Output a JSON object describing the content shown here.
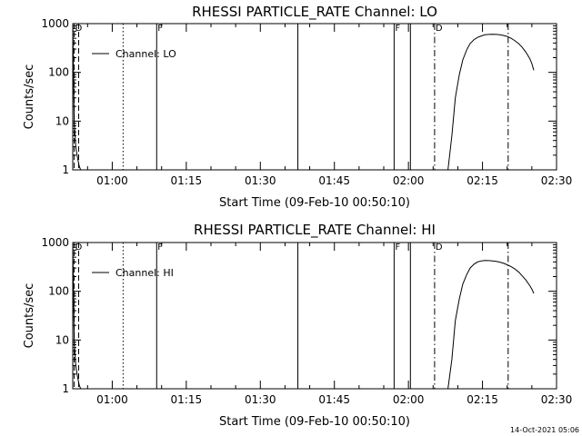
{
  "footer": {
    "timestamp": "14-Oct-2021 05:06"
  },
  "chart_data": [
    {
      "type": "line",
      "title": "RHESSI PARTICLE_RATE Channel: LO",
      "xlabel": "Start Time (09-Feb-10 00:50:10)",
      "ylabel": "Counts/sec",
      "yscale": "log",
      "ylim": [
        1,
        1000
      ],
      "xlim_minutes": [
        52.0,
        150.0
      ],
      "x_ticks": [
        {
          "label": "01:00",
          "minutes": 60
        },
        {
          "label": "01:15",
          "minutes": 75
        },
        {
          "label": "01:30",
          "minutes": 90
        },
        {
          "label": "01:45",
          "minutes": 105
        },
        {
          "label": "02:00",
          "minutes": 120
        },
        {
          "label": "02:15",
          "minutes": 135
        },
        {
          "label": "02:30",
          "minutes": 150
        }
      ],
      "y_ticks": [
        {
          "label": "1",
          "value": 1
        },
        {
          "label": "10",
          "value": 10
        },
        {
          "label": "100",
          "value": 100
        },
        {
          "label": "1000",
          "value": 1000
        }
      ],
      "legend": {
        "entry": "Channel: LO",
        "position": "top-left"
      },
      "series": [
        {
          "name": "Channel: LO",
          "x": [
            52.0,
            52.3,
            52.6,
            53.0,
            53.3,
            53.6,
            128.0,
            128.8,
            129.5,
            130.3,
            131.0,
            131.8,
            132.5,
            133.3,
            134.0,
            134.8,
            135.5,
            136.3,
            137.0,
            137.8,
            138.5,
            139.3,
            140.0,
            140.8,
            141.5,
            142.3,
            143.0,
            143.8,
            144.6,
            145.0,
            145.4
          ],
          "values": [
            1000,
            10,
            3,
            1.7,
            1.2,
            1.0,
            1.0,
            5,
            30,
            90,
            180,
            290,
            390,
            470,
            520,
            560,
            590,
            600,
            605,
            600,
            590,
            570,
            545,
            500,
            450,
            390,
            330,
            260,
            190,
            150,
            110
          ]
        }
      ],
      "vertical_lines": [
        {
          "minutes": 52.3,
          "style": "dashed"
        },
        {
          "minutes": 53.2,
          "style": "dashed"
        },
        {
          "minutes": 62.2,
          "style": "dotted"
        },
        {
          "minutes": 69.0,
          "style": "solid"
        },
        {
          "minutes": 97.6,
          "style": "solid"
        },
        {
          "minutes": 117.1,
          "style": "solid"
        },
        {
          "minutes": 120.4,
          "style": "solid"
        },
        {
          "minutes": 125.3,
          "style": "dashdot"
        },
        {
          "minutes": 140.2,
          "style": "dashdot"
        }
      ],
      "flag_labels": [
        {
          "text": "D",
          "minutes": 52.3
        },
        {
          "text": "F",
          "minutes": 69.0
        },
        {
          "text": "F",
          "minutes": 117.1
        },
        {
          "text": "D",
          "minutes": 125.3
        }
      ]
    },
    {
      "type": "line",
      "title": "RHESSI PARTICLE_RATE Channel: HI",
      "xlabel": "Start Time (09-Feb-10 00:50:10)",
      "ylabel": "Counts/sec",
      "yscale": "log",
      "ylim": [
        1,
        1000
      ],
      "xlim_minutes": [
        52.0,
        150.0
      ],
      "x_ticks": [
        {
          "label": "01:00",
          "minutes": 60
        },
        {
          "label": "01:15",
          "minutes": 75
        },
        {
          "label": "01:30",
          "minutes": 90
        },
        {
          "label": "01:45",
          "minutes": 105
        },
        {
          "label": "02:00",
          "minutes": 120
        },
        {
          "label": "02:15",
          "minutes": 135
        },
        {
          "label": "02:30",
          "minutes": 150
        }
      ],
      "y_ticks": [
        {
          "label": "1",
          "value": 1
        },
        {
          "label": "10",
          "value": 10
        },
        {
          "label": "100",
          "value": 100
        },
        {
          "label": "1000",
          "value": 1000
        }
      ],
      "legend": {
        "entry": "Channel: HI",
        "position": "top-left"
      },
      "series": [
        {
          "name": "Channel: HI",
          "x": [
            52.0,
            52.3,
            52.6,
            53.0,
            53.3,
            53.6,
            128.0,
            128.8,
            129.5,
            130.3,
            131.0,
            131.8,
            132.5,
            133.3,
            134.0,
            134.8,
            135.5,
            136.3,
            137.0,
            137.8,
            138.5,
            139.3,
            140.0,
            140.8,
            141.5,
            142.3,
            143.0,
            143.8,
            144.6,
            145.0,
            145.4
          ],
          "values": [
            1000,
            10,
            3,
            1.7,
            1.2,
            1.0,
            1.0,
            4,
            25,
            70,
            140,
            220,
            300,
            360,
            400,
            420,
            430,
            425,
            420,
            410,
            395,
            375,
            350,
            320,
            290,
            250,
            210,
            170,
            130,
            110,
            90
          ]
        }
      ],
      "vertical_lines": [
        {
          "minutes": 52.3,
          "style": "dashed"
        },
        {
          "minutes": 53.2,
          "style": "dashed"
        },
        {
          "minutes": 62.2,
          "style": "dotted"
        },
        {
          "minutes": 69.0,
          "style": "solid"
        },
        {
          "minutes": 97.6,
          "style": "solid"
        },
        {
          "minutes": 117.1,
          "style": "solid"
        },
        {
          "minutes": 120.4,
          "style": "solid"
        },
        {
          "minutes": 125.3,
          "style": "dashdot"
        },
        {
          "minutes": 140.2,
          "style": "dashdot"
        }
      ],
      "flag_labels": [
        {
          "text": "D",
          "minutes": 52.3
        },
        {
          "text": "F",
          "minutes": 69.0
        },
        {
          "text": "F",
          "minutes": 117.1
        },
        {
          "text": "D",
          "minutes": 125.3
        }
      ]
    }
  ]
}
